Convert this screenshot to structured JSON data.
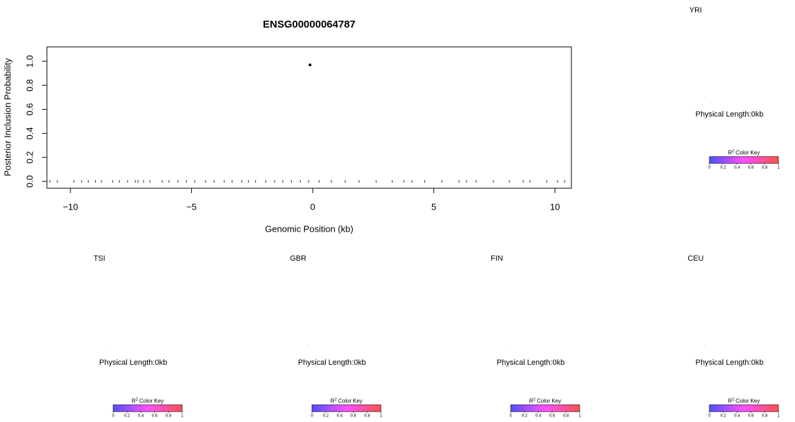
{
  "chart_data": {
    "type": "scatter",
    "title": "ENSG00000064787",
    "x_label": "Genomic Position (kb)",
    "y_label": "Posterior Inclusion Probability",
    "x": [
      -0.11
    ],
    "values": [
      0.97
    ],
    "color": "#000000",
    "rug": [
      -10.85,
      -10.54,
      -9.86,
      -9.54,
      -9.26,
      -8.97,
      -8.72,
      -8.26,
      -7.98,
      -7.64,
      -7.32,
      -7.21,
      -6.98,
      -6.72,
      -6.21,
      -5.93,
      -5.56,
      -5.21,
      -4.87,
      -4.42,
      -4.07,
      -3.65,
      -3.33,
      -2.93,
      -2.65,
      -2.36,
      -1.94,
      -1.57,
      -1.23,
      -0.88,
      -0.51,
      -0.17,
      0.26,
      0.77,
      1.34,
      1.91,
      2.62,
      3.28,
      3.76,
      4.1,
      4.62,
      5.33,
      6.04,
      6.35,
      6.75,
      7.46,
      8.12,
      8.69,
      8.97,
      9.66,
      10.11,
      10.4
    ],
    "xlim": [
      -10.97,
      10.68
    ],
    "xticks": [
      {
        "value": -10,
        "label": "−10"
      },
      {
        "value": -5,
        "label": "−5"
      },
      0,
      5,
      10
    ],
    "ylim": [
      -0.057,
      1.12
    ],
    "yticks": [
      {
        "value": 0,
        "label": "0.0"
      },
      0.2,
      0.4,
      0.6,
      0.8,
      {
        "value": 1,
        "label": "1.0"
      }
    ]
  },
  "ld_panels": {
    "color_key": {
      "title_r": "R",
      "title_sup": "2",
      "title_rest": "Color Key",
      "ticks": [
        0,
        0.2,
        0.4,
        0.6,
        0.8,
        1
      ],
      "colors": [
        "#5050ff",
        "#ff50ff",
        "#ff5050"
      ]
    },
    "panels": [
      {
        "population": "YRI",
        "length": "Physical Length:0kb"
      },
      {
        "population": "TSI",
        "length": "Physical Length:0kb"
      },
      {
        "population": "GBR",
        "length": "Physical Length:0kb"
      },
      {
        "population": "FIN",
        "length": "Physical Length:0kb"
      },
      {
        "population": "CEU",
        "length": "Physical Length:0kb"
      }
    ]
  }
}
